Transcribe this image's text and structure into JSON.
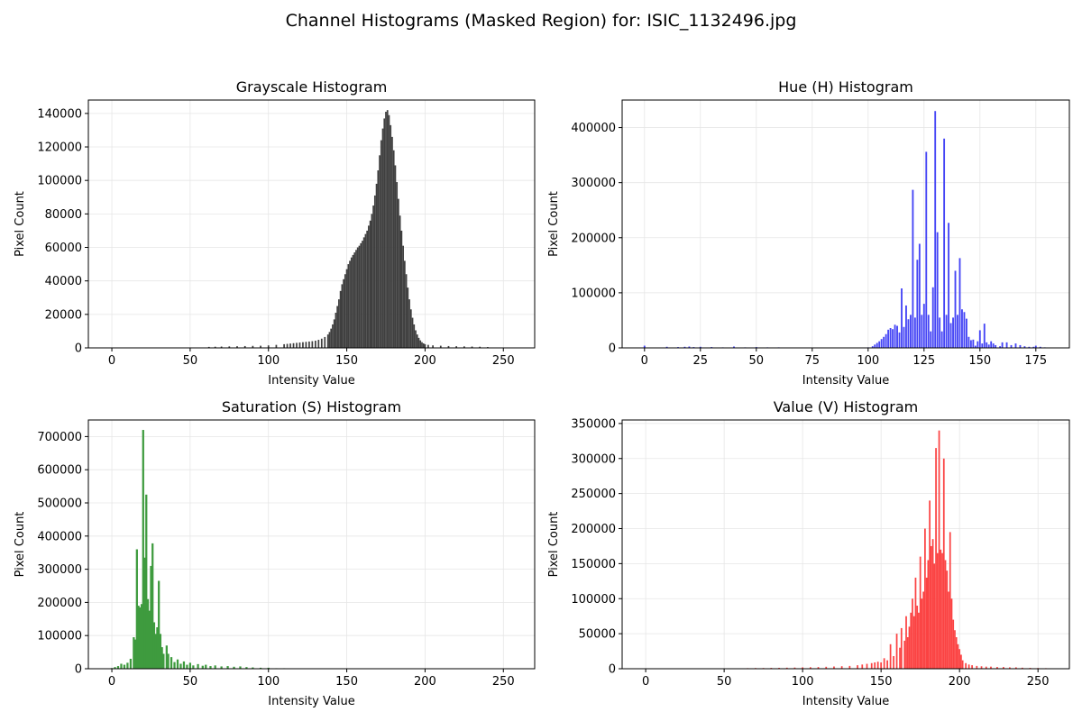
{
  "figure": {
    "suptitle": "Channel Histograms (Masked Region) for: ISIC_1132496.jpg"
  },
  "chart_data": [
    {
      "type": "bar",
      "title": "Grayscale Histogram",
      "xlabel": "Intensity Value",
      "ylabel": "Pixel Count",
      "color": "#3f3f3f",
      "xlim": [
        -15,
        270
      ],
      "ylim": [
        0,
        148000
      ],
      "xticks": [
        0,
        50,
        100,
        150,
        200,
        250
      ],
      "yticks": [
        0,
        20000,
        40000,
        60000,
        80000,
        100000,
        120000,
        140000
      ],
      "grid": true,
      "bin_width": 1,
      "bins": [
        [
          62,
          600
        ],
        [
          66,
          700
        ],
        [
          70,
          800
        ],
        [
          75,
          900
        ],
        [
          80,
          1000
        ],
        [
          85,
          1100
        ],
        [
          90,
          1200
        ],
        [
          95,
          1300
        ],
        [
          100,
          1500
        ],
        [
          105,
          1800
        ],
        [
          110,
          2200
        ],
        [
          112,
          2400
        ],
        [
          114,
          2600
        ],
        [
          116,
          2800
        ],
        [
          118,
          3000
        ],
        [
          120,
          3200
        ],
        [
          122,
          3400
        ],
        [
          124,
          3600
        ],
        [
          126,
          3800
        ],
        [
          128,
          4000
        ],
        [
          130,
          4300
        ],
        [
          132,
          4800
        ],
        [
          134,
          5500
        ],
        [
          136,
          6500
        ],
        [
          138,
          8000
        ],
        [
          139,
          9500
        ],
        [
          140,
          11500
        ],
        [
          141,
          14000
        ],
        [
          142,
          17000
        ],
        [
          143,
          21000
        ],
        [
          144,
          25000
        ],
        [
          145,
          29000
        ],
        [
          146,
          34000
        ],
        [
          147,
          38000
        ],
        [
          148,
          41000
        ],
        [
          149,
          44000
        ],
        [
          150,
          47000
        ],
        [
          151,
          50000
        ],
        [
          152,
          52000
        ],
        [
          153,
          54000
        ],
        [
          154,
          55500
        ],
        [
          155,
          57000
        ],
        [
          156,
          58500
        ],
        [
          157,
          60000
        ],
        [
          158,
          61000
        ],
        [
          159,
          62500
        ],
        [
          160,
          64000
        ],
        [
          161,
          66000
        ],
        [
          162,
          68000
        ],
        [
          163,
          70000
        ],
        [
          164,
          73000
        ],
        [
          165,
          76000
        ],
        [
          166,
          80000
        ],
        [
          167,
          85000
        ],
        [
          168,
          91000
        ],
        [
          169,
          98000
        ],
        [
          170,
          106000
        ],
        [
          171,
          115000
        ],
        [
          172,
          124000
        ],
        [
          173,
          131000
        ],
        [
          174,
          137000
        ],
        [
          175,
          141000
        ],
        [
          176,
          142000
        ],
        [
          177,
          139000
        ],
        [
          178,
          133000
        ],
        [
          179,
          126000
        ],
        [
          180,
          118000
        ],
        [
          181,
          109000
        ],
        [
          182,
          99000
        ],
        [
          183,
          89000
        ],
        [
          184,
          79000
        ],
        [
          185,
          70000
        ],
        [
          186,
          61000
        ],
        [
          187,
          52000
        ],
        [
          188,
          44000
        ],
        [
          189,
          36000
        ],
        [
          190,
          29000
        ],
        [
          191,
          23000
        ],
        [
          192,
          18000
        ],
        [
          193,
          14000
        ],
        [
          194,
          10500
        ],
        [
          195,
          8000
        ],
        [
          196,
          6000
        ],
        [
          197,
          4500
        ],
        [
          198,
          3400
        ],
        [
          199,
          2700
        ],
        [
          200,
          2200
        ],
        [
          202,
          1800
        ],
        [
          205,
          1500
        ],
        [
          210,
          1300
        ],
        [
          215,
          1100
        ],
        [
          220,
          1000
        ],
        [
          225,
          900
        ],
        [
          230,
          800
        ],
        [
          235,
          700
        ],
        [
          240,
          500
        ]
      ]
    },
    {
      "type": "bar",
      "title": "Hue (H) Histogram",
      "xlabel": "Intensity Value",
      "ylabel": "Pixel Count",
      "color": "#4545f5",
      "xlim": [
        -10,
        190
      ],
      "ylim": [
        0,
        450000
      ],
      "xticks": [
        0,
        25,
        50,
        75,
        100,
        125,
        150,
        175
      ],
      "yticks": [
        0,
        100000,
        200000,
        300000,
        400000
      ],
      "grid": true,
      "bin_width": 0.75,
      "bins": [
        [
          0,
          4000
        ],
        [
          10,
          2000
        ],
        [
          15,
          1500
        ],
        [
          18,
          2000
        ],
        [
          20,
          2500
        ],
        [
          22,
          1500
        ],
        [
          25,
          2000
        ],
        [
          30,
          1500
        ],
        [
          35,
          1000
        ],
        [
          40,
          2500
        ],
        [
          45,
          1000
        ],
        [
          50,
          1500
        ],
        [
          55,
          1000
        ],
        [
          60,
          1000
        ],
        [
          65,
          800
        ],
        [
          70,
          600
        ],
        [
          80,
          500
        ],
        [
          90,
          500
        ],
        [
          100,
          1000
        ],
        [
          102,
          3000
        ],
        [
          103,
          6000
        ],
        [
          104,
          9000
        ],
        [
          105,
          12000
        ],
        [
          106,
          16000
        ],
        [
          107,
          20000
        ],
        [
          108,
          25000
        ],
        [
          109,
          33000
        ],
        [
          110,
          36000
        ],
        [
          111,
          34000
        ],
        [
          112,
          42000
        ],
        [
          113,
          40000
        ],
        [
          114,
          28000
        ],
        [
          115,
          108000
        ],
        [
          116,
          38000
        ],
        [
          117,
          77000
        ],
        [
          118,
          52000
        ],
        [
          119,
          60000
        ],
        [
          120,
          287000
        ],
        [
          121,
          55000
        ],
        [
          122,
          160000
        ],
        [
          123,
          189000
        ],
        [
          124,
          60000
        ],
        [
          125,
          80000
        ],
        [
          126,
          356000
        ],
        [
          127,
          60000
        ],
        [
          128,
          30000
        ],
        [
          129,
          110000
        ],
        [
          130,
          430000
        ],
        [
          131,
          210000
        ],
        [
          132,
          55000
        ],
        [
          133,
          30000
        ],
        [
          134,
          380000
        ],
        [
          135,
          60000
        ],
        [
          136,
          227000
        ],
        [
          137,
          45000
        ],
        [
          138,
          55000
        ],
        [
          139,
          140000
        ],
        [
          140,
          60000
        ],
        [
          141,
          163000
        ],
        [
          142,
          70000
        ],
        [
          143,
          65000
        ],
        [
          144,
          53000
        ],
        [
          145,
          20000
        ],
        [
          146,
          14000
        ],
        [
          147,
          15000
        ],
        [
          148,
          4000
        ],
        [
          149,
          12000
        ],
        [
          150,
          32000
        ],
        [
          151,
          8000
        ],
        [
          152,
          44000
        ],
        [
          153,
          10000
        ],
        [
          154,
          6000
        ],
        [
          155,
          12000
        ],
        [
          156,
          8000
        ],
        [
          157,
          5000
        ],
        [
          159,
          3000
        ],
        [
          160,
          10000
        ],
        [
          162,
          10000
        ],
        [
          164,
          5000
        ],
        [
          166,
          8000
        ],
        [
          168,
          5000
        ],
        [
          170,
          3000
        ],
        [
          172,
          2000
        ],
        [
          174,
          2000
        ],
        [
          175,
          4000
        ],
        [
          177,
          2000
        ],
        [
          179,
          1000
        ]
      ]
    },
    {
      "type": "bar",
      "title": "Saturation (S) Histogram",
      "xlabel": "Intensity Value",
      "ylabel": "Pixel Count",
      "color": "#3e9b3e",
      "xlim": [
        -15,
        270
      ],
      "ylim": [
        0,
        750000
      ],
      "xticks": [
        0,
        50,
        100,
        150,
        200,
        250
      ],
      "yticks": [
        0,
        100000,
        200000,
        300000,
        400000,
        500000,
        600000,
        700000
      ],
      "grid": true,
      "bin_width": 1.3,
      "bins": [
        [
          0,
          2000
        ],
        [
          2,
          5000
        ],
        [
          4,
          8000
        ],
        [
          6,
          15000
        ],
        [
          8,
          12000
        ],
        [
          10,
          18000
        ],
        [
          12,
          30000
        ],
        [
          14,
          95000
        ],
        [
          15,
          88000
        ],
        [
          16,
          360000
        ],
        [
          17,
          190000
        ],
        [
          18,
          185000
        ],
        [
          19,
          195000
        ],
        [
          20,
          720000
        ],
        [
          21,
          335000
        ],
        [
          22,
          525000
        ],
        [
          23,
          210000
        ],
        [
          24,
          175000
        ],
        [
          25,
          310000
        ],
        [
          26,
          378000
        ],
        [
          27,
          140000
        ],
        [
          28,
          105000
        ],
        [
          29,
          125000
        ],
        [
          30,
          265000
        ],
        [
          31,
          105000
        ],
        [
          32,
          65000
        ],
        [
          33,
          45000
        ],
        [
          35,
          70000
        ],
        [
          36,
          45000
        ],
        [
          38,
          35000
        ],
        [
          40,
          20000
        ],
        [
          42,
          28000
        ],
        [
          44,
          15000
        ],
        [
          46,
          22000
        ],
        [
          48,
          12000
        ],
        [
          50,
          18000
        ],
        [
          52,
          10000
        ],
        [
          55,
          14000
        ],
        [
          58,
          9000
        ],
        [
          60,
          12000
        ],
        [
          63,
          8000
        ],
        [
          66,
          10000
        ],
        [
          70,
          7000
        ],
        [
          74,
          8000
        ],
        [
          78,
          6000
        ],
        [
          82,
          7000
        ],
        [
          86,
          5000
        ],
        [
          90,
          4000
        ],
        [
          95,
          3000
        ],
        [
          100,
          3000
        ],
        [
          105,
          1500
        ],
        [
          110,
          1500
        ]
      ]
    },
    {
      "type": "bar",
      "title": "Value (V) Histogram",
      "xlabel": "Intensity Value",
      "ylabel": "Pixel Count",
      "color": "#fb4343",
      "xlim": [
        -15,
        270
      ],
      "ylim": [
        0,
        355000
      ],
      "xticks": [
        0,
        50,
        100,
        150,
        200,
        250
      ],
      "yticks": [
        0,
        50000,
        100000,
        150000,
        200000,
        250000,
        300000,
        350000
      ],
      "grid": true,
      "bin_width": 1,
      "bins": [
        [
          65,
          800
        ],
        [
          70,
          1000
        ],
        [
          75,
          1000
        ],
        [
          80,
          1200
        ],
        [
          85,
          1300
        ],
        [
          90,
          1500
        ],
        [
          95,
          1700
        ],
        [
          100,
          2000
        ],
        [
          105,
          2200
        ],
        [
          110,
          2400
        ],
        [
          115,
          2800
        ],
        [
          120,
          3200
        ],
        [
          125,
          3600
        ],
        [
          130,
          4000
        ],
        [
          135,
          5000
        ],
        [
          138,
          6000
        ],
        [
          141,
          7000
        ],
        [
          144,
          8000
        ],
        [
          146,
          9000
        ],
        [
          148,
          10000
        ],
        [
          150,
          9000
        ],
        [
          152,
          15000
        ],
        [
          154,
          12000
        ],
        [
          156,
          35000
        ],
        [
          158,
          18000
        ],
        [
          160,
          50000
        ],
        [
          162,
          30000
        ],
        [
          163,
          58000
        ],
        [
          165,
          40000
        ],
        [
          166,
          75000
        ],
        [
          167,
          45000
        ],
        [
          168,
          60000
        ],
        [
          169,
          80000
        ],
        [
          170,
          100000
        ],
        [
          171,
          75000
        ],
        [
          172,
          130000
        ],
        [
          173,
          90000
        ],
        [
          174,
          80000
        ],
        [
          175,
          160000
        ],
        [
          176,
          100000
        ],
        [
          177,
          110000
        ],
        [
          178,
          200000
        ],
        [
          179,
          130000
        ],
        [
          180,
          155000
        ],
        [
          181,
          240000
        ],
        [
          182,
          175000
        ],
        [
          183,
          185000
        ],
        [
          184,
          150000
        ],
        [
          185,
          315000
        ],
        [
          186,
          165000
        ],
        [
          187,
          340000
        ],
        [
          188,
          170000
        ],
        [
          189,
          165000
        ],
        [
          190,
          300000
        ],
        [
          191,
          155000
        ],
        [
          192,
          140000
        ],
        [
          193,
          110000
        ],
        [
          194,
          195000
        ],
        [
          195,
          100000
        ],
        [
          196,
          70000
        ],
        [
          197,
          55000
        ],
        [
          198,
          45000
        ],
        [
          199,
          35000
        ],
        [
          200,
          28000
        ],
        [
          201,
          20000
        ],
        [
          202,
          12000
        ],
        [
          204,
          8000
        ],
        [
          206,
          6000
        ],
        [
          208,
          5000
        ],
        [
          211,
          4000
        ],
        [
          214,
          3500
        ],
        [
          217,
          3000
        ],
        [
          220,
          3000
        ],
        [
          224,
          2500
        ],
        [
          228,
          2500
        ],
        [
          232,
          2000
        ],
        [
          236,
          2000
        ],
        [
          240,
          1500
        ],
        [
          245,
          1200
        ],
        [
          250,
          1000
        ],
        [
          255,
          800
        ]
      ]
    }
  ]
}
